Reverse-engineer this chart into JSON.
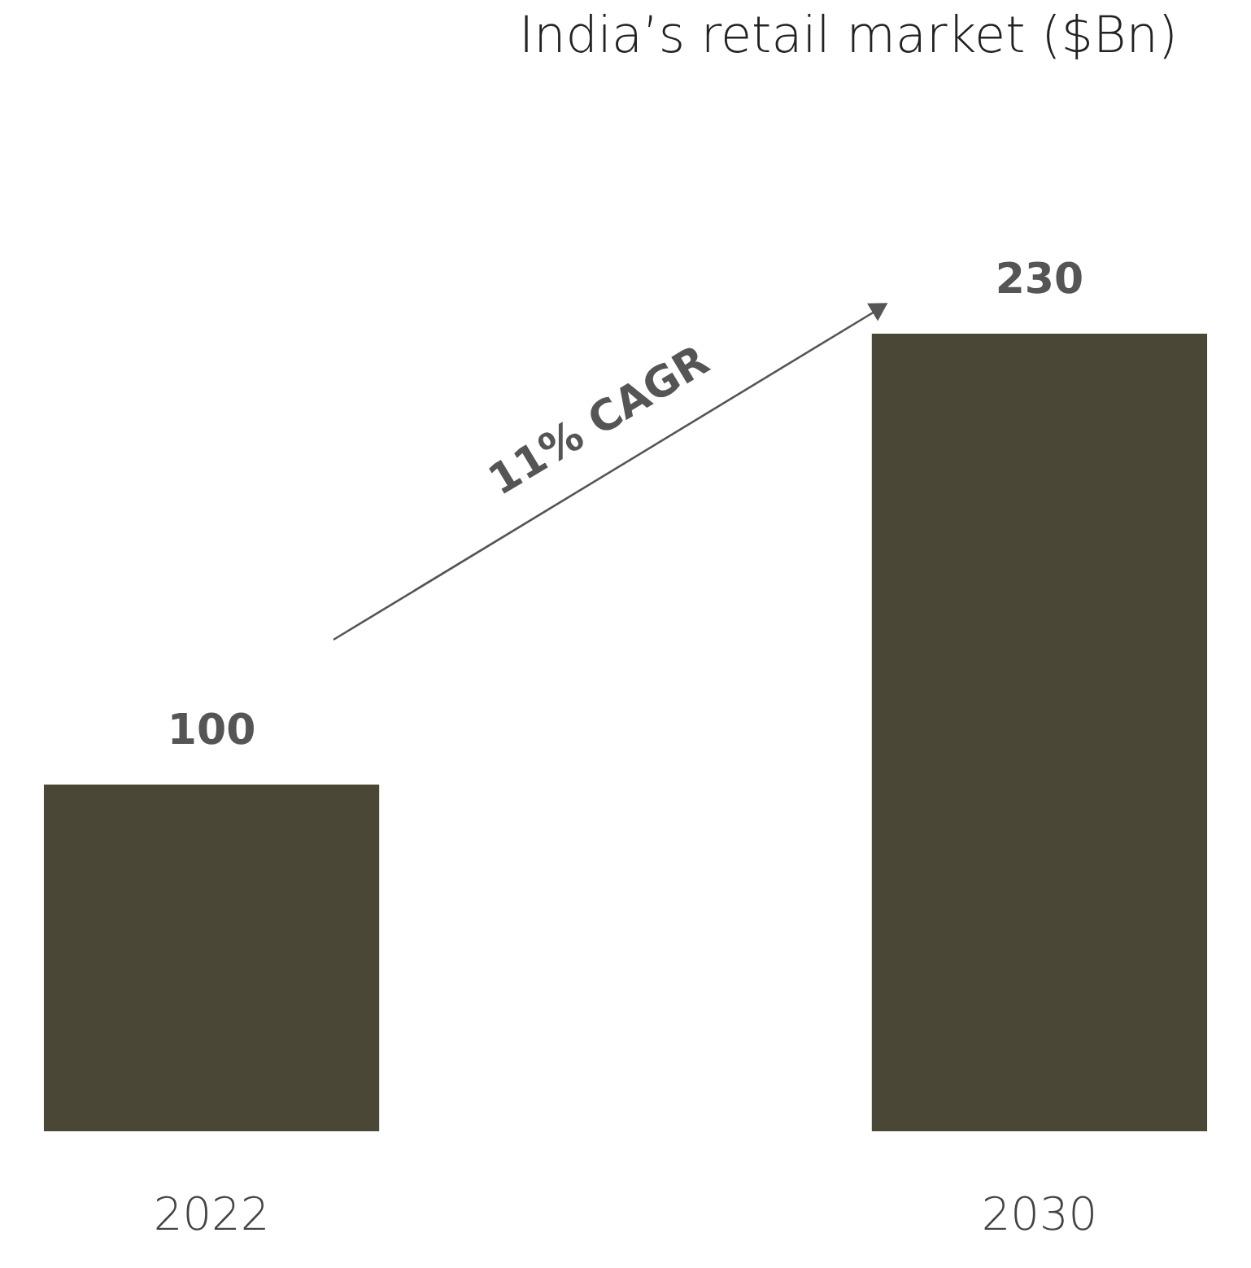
{
  "chart_data": {
    "type": "bar",
    "title": "India’s retail market ($Bn)",
    "categories": [
      "2022",
      "2030"
    ],
    "values": [
      100,
      230
    ],
    "color": "#4a4737",
    "data_labels": true,
    "annotations": [
      "11% CAGR"
    ]
  }
}
